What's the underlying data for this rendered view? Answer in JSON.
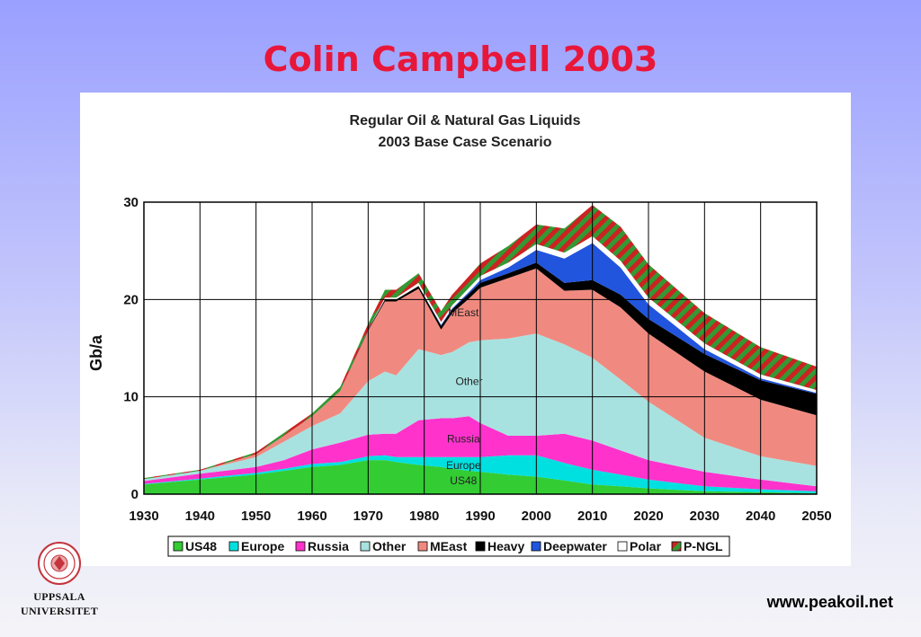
{
  "slide": {
    "title": "Colin Campbell 2003",
    "url": "www.peakoil.net",
    "logo_lines": [
      "UPPSALA",
      "UNIVERSITET"
    ],
    "logo_icon": "university-seal-icon"
  },
  "chart_data": {
    "type": "area",
    "stacked": true,
    "title": "Regular Oil & Natural Gas Liquids",
    "subtitle": "2003 Base Case Scenario",
    "xlabel": "",
    "ylabel": "Gb/a",
    "xlim": [
      1930,
      2050
    ],
    "ylim": [
      0,
      30
    ],
    "x_ticks": [
      1930,
      1940,
      1950,
      1960,
      1970,
      1980,
      1990,
      2000,
      2010,
      2020,
      2030,
      2040,
      2050
    ],
    "y_ticks": [
      0,
      10,
      20,
      30
    ],
    "grid": true,
    "legend_position": "bottom",
    "x": [
      1930,
      1940,
      1950,
      1955,
      1960,
      1965,
      1970,
      1973,
      1975,
      1979,
      1983,
      1985,
      1988,
      1990,
      1995,
      2000,
      2005,
      2010,
      2015,
      2020,
      2030,
      2040,
      2050
    ],
    "series": [
      {
        "name": "US48",
        "color": "#33cc33",
        "values": [
          1.0,
          1.5,
          2.0,
          2.4,
          2.8,
          3.0,
          3.5,
          3.5,
          3.3,
          3.0,
          2.8,
          2.6,
          2.4,
          2.3,
          2.0,
          1.8,
          1.4,
          1.0,
          0.8,
          0.6,
          0.3,
          0.2,
          0.1
        ]
      },
      {
        "name": "Europe",
        "color": "#00e0e0",
        "values": [
          0.05,
          0.1,
          0.2,
          0.2,
          0.3,
          0.3,
          0.4,
          0.5,
          0.5,
          0.8,
          1.0,
          1.2,
          1.4,
          1.5,
          2.0,
          2.2,
          1.8,
          1.5,
          1.2,
          0.9,
          0.5,
          0.3,
          0.2
        ]
      },
      {
        "name": "Russia",
        "color": "#ff33cc",
        "values": [
          0.3,
          0.5,
          0.6,
          0.9,
          1.5,
          2.0,
          2.2,
          2.2,
          2.4,
          3.8,
          4.0,
          4.0,
          4.2,
          3.5,
          2.0,
          2.0,
          3.0,
          3.0,
          2.5,
          2.0,
          1.5,
          1.0,
          0.5
        ]
      },
      {
        "name": "Other",
        "color": "#a8e2e0",
        "values": [
          0.2,
          0.3,
          1.0,
          1.9,
          2.4,
          3.0,
          5.5,
          6.4,
          6.0,
          7.3,
          6.5,
          6.8,
          7.6,
          8.5,
          10.0,
          10.5,
          9.2,
          8.5,
          7.3,
          6.0,
          3.5,
          2.4,
          2.1
        ]
      },
      {
        "name": "MEast",
        "color": "#f08a80",
        "values": [
          0.0,
          0.0,
          0.3,
          0.6,
          1.0,
          2.3,
          5.2,
          7.2,
          7.6,
          6.2,
          2.6,
          4.0,
          4.5,
          5.4,
          6.2,
          6.7,
          5.5,
          7.0,
          7.4,
          7.0,
          6.8,
          5.8,
          5.2
        ]
      },
      {
        "name": "Heavy",
        "color": "#000000",
        "values": [
          0.0,
          0.0,
          0.0,
          0.0,
          0.0,
          0.0,
          0.1,
          0.2,
          0.2,
          0.3,
          0.4,
          0.4,
          0.5,
          0.5,
          0.5,
          0.6,
          0.8,
          1.0,
          1.3,
          1.5,
          1.8,
          2.0,
          2.2
        ]
      },
      {
        "name": "Deepwater",
        "color": "#2255dd",
        "values": [
          0.0,
          0.0,
          0.0,
          0.0,
          0.0,
          0.0,
          0.0,
          0.0,
          0.0,
          0.0,
          0.1,
          0.1,
          0.2,
          0.3,
          0.6,
          1.3,
          2.5,
          3.8,
          2.8,
          1.5,
          0.5,
          0.2,
          0.1
        ]
      },
      {
        "name": "Polar",
        "color": "#ffffff",
        "values": [
          0.0,
          0.0,
          0.0,
          0.0,
          0.0,
          0.0,
          0.0,
          0.2,
          0.2,
          0.3,
          0.3,
          0.3,
          0.4,
          0.4,
          0.5,
          0.6,
          0.6,
          0.7,
          0.7,
          0.7,
          0.6,
          0.4,
          0.3
        ]
      },
      {
        "name": "P-NGL",
        "color": "#339933",
        "stripe_color": "#cc2222",
        "values": [
          0.1,
          0.1,
          0.2,
          0.3,
          0.3,
          0.4,
          0.6,
          0.8,
          0.8,
          1.0,
          1.1,
          1.1,
          1.2,
          1.3,
          1.7,
          2.0,
          2.5,
          3.2,
          3.5,
          3.4,
          3.1,
          2.8,
          2.4
        ]
      }
    ],
    "annotations": [
      {
        "text": "MEast",
        "x": 1987,
        "y": 18.3
      },
      {
        "text": "Other",
        "x": 1988,
        "y": 11.2
      },
      {
        "text": "Russia",
        "x": 1987,
        "y": 5.3
      },
      {
        "text": "Europe",
        "x": 1987,
        "y": 2.6
      },
      {
        "text": "US48",
        "x": 1987,
        "y": 1.0
      }
    ]
  }
}
